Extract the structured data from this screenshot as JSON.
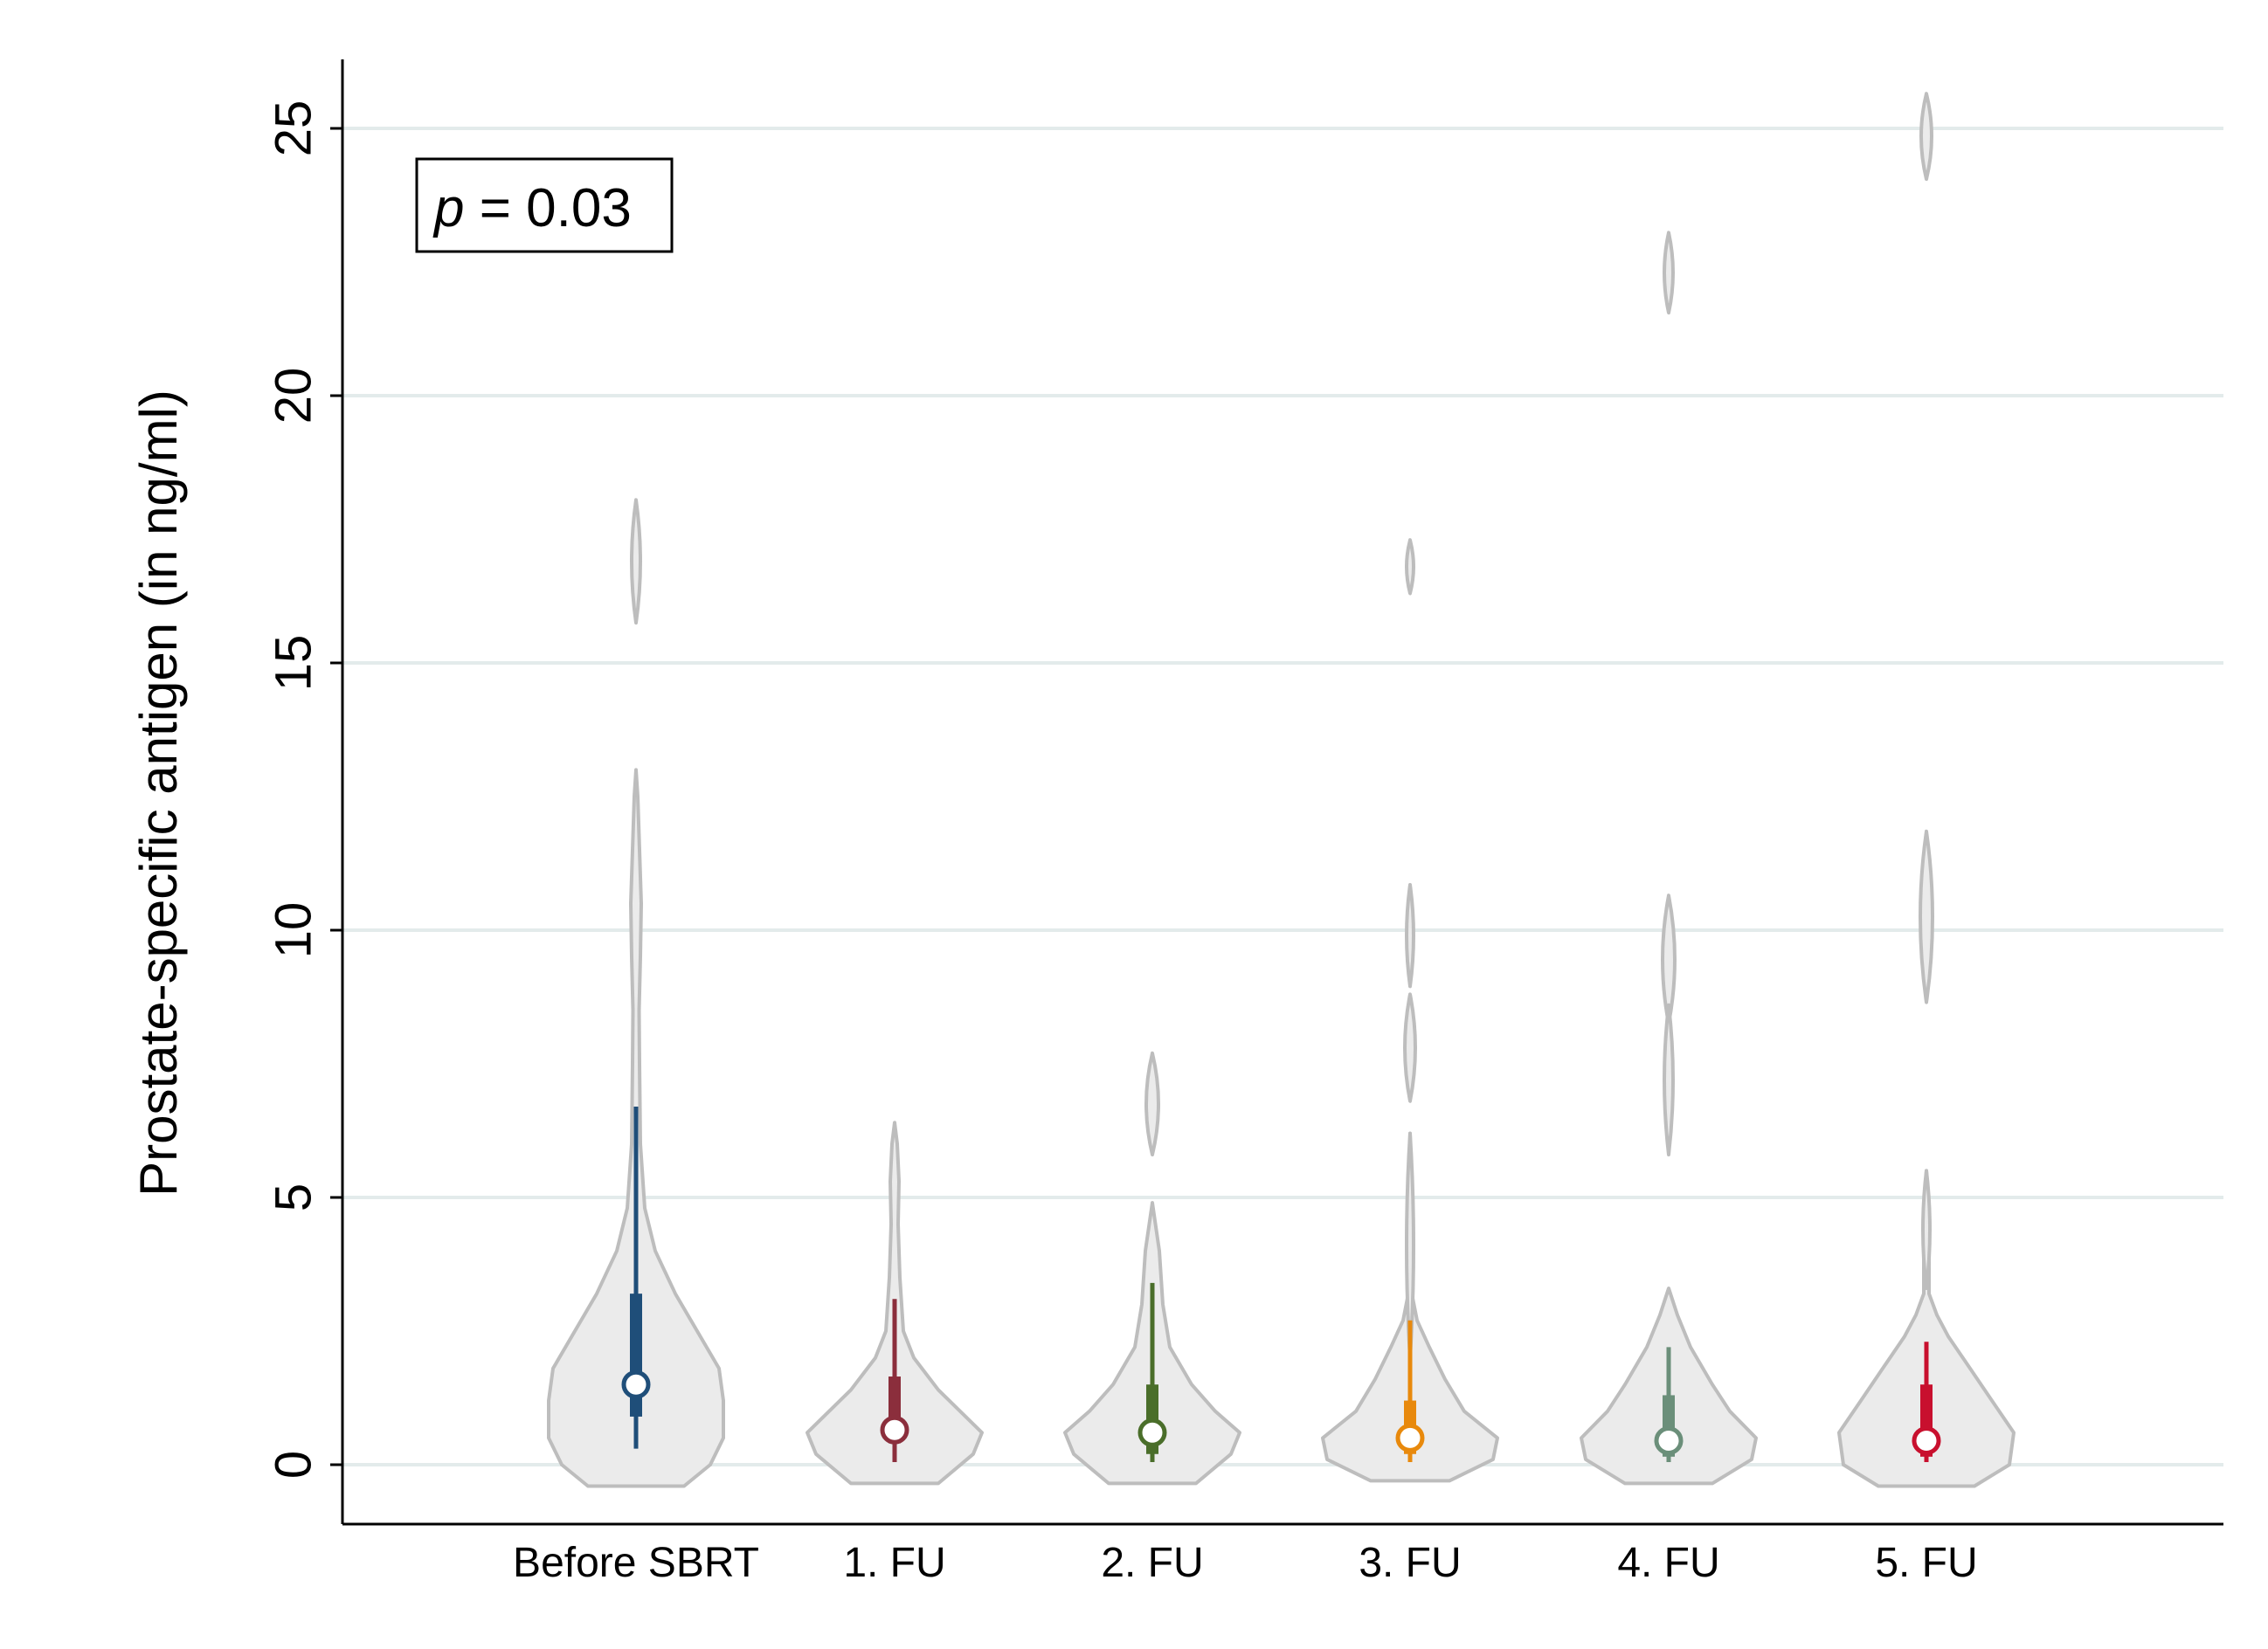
{
  "chart_data": {
    "type": "violin",
    "ylabel": "Prostate-specific antigen (in ng/ml)",
    "xlabel": "",
    "ylim": [
      -1.1,
      26.3
    ],
    "yticks": [
      0,
      5,
      10,
      15,
      20,
      25
    ],
    "grid": true,
    "annotation": {
      "italic": "p",
      "rest": " = 0.03"
    },
    "categories": [
      "Before SBRT",
      "1. FU",
      "2. FU",
      "3. FU",
      "4. FU",
      "5. FU"
    ],
    "series": [
      {
        "name": "Before SBRT",
        "color": "#1f4e79",
        "median": 1.5,
        "q1": 0.9,
        "q3": 3.2,
        "whisker_low": 0.3,
        "whisker_high": 6.7,
        "violin_extent": [
          -0.4,
          18.0
        ],
        "violin_max_half_width": 1.0
      },
      {
        "name": "1. FU",
        "color": "#8b2e3c",
        "median": 0.65,
        "q1": 0.4,
        "q3": 1.65,
        "whisker_low": 0.05,
        "whisker_high": 3.1,
        "violin_extent": [
          -0.35,
          6.4
        ],
        "violin_max_half_width": 1.0
      },
      {
        "name": "2. FU",
        "color": "#4a6e2a",
        "median": 0.6,
        "q1": 0.2,
        "q3": 1.5,
        "whisker_low": 0.05,
        "whisker_high": 3.4,
        "violin_extent": [
          -0.35,
          7.6
        ],
        "violin_max_half_width": 1.0
      },
      {
        "name": "3. FU",
        "color": "#e8890c",
        "median": 0.5,
        "q1": 0.2,
        "q3": 1.2,
        "whisker_low": 0.05,
        "whisker_high": 2.7,
        "violin_extent": [
          -0.3,
          17.3
        ],
        "violin_max_half_width": 1.0
      },
      {
        "name": "4. FU",
        "color": "#6b8f7a",
        "median": 0.45,
        "q1": 0.15,
        "q3": 1.3,
        "whisker_low": 0.05,
        "whisker_high": 2.2,
        "violin_extent": [
          -0.35,
          23.0
        ],
        "violin_max_half_width": 1.0
      },
      {
        "name": "5. FU",
        "color": "#c8102e",
        "median": 0.45,
        "q1": 0.15,
        "q3": 1.5,
        "whisker_low": 0.05,
        "whisker_high": 2.3,
        "violin_extent": [
          -0.4,
          25.6
        ],
        "violin_max_half_width": 1.0
      }
    ]
  }
}
